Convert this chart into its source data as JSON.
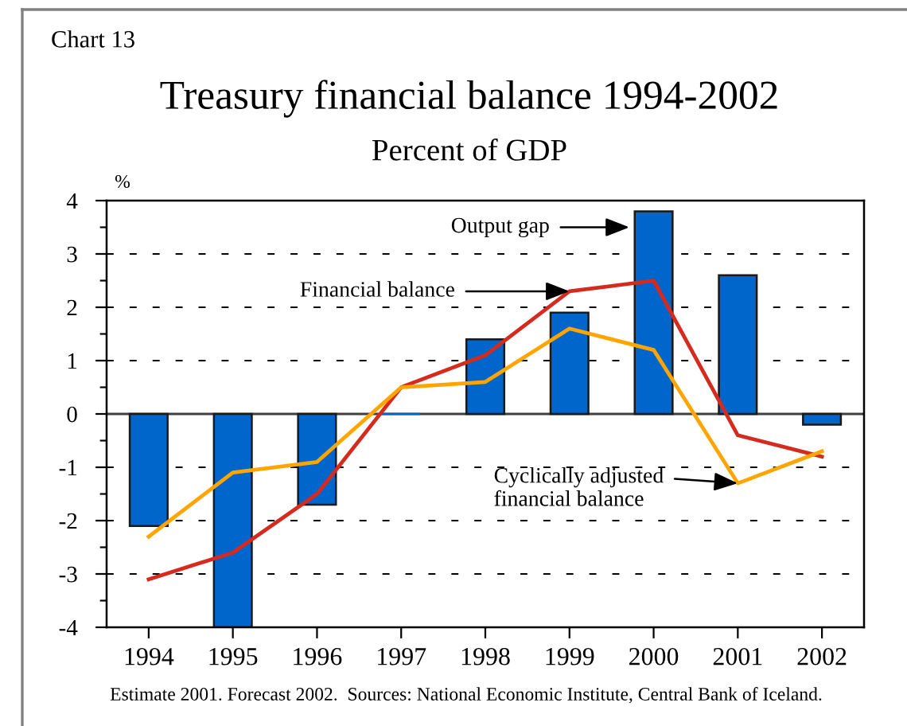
{
  "chart_data": {
    "type": "bar",
    "title": "Treasury financial balance 1994-2002",
    "subtitle": "Percent of GDP",
    "ylabel": "%",
    "categories": [
      "1994",
      "1995",
      "1996",
      "1997",
      "1998",
      "1999",
      "2000",
      "2001",
      "2002"
    ],
    "series": [
      {
        "color": "#0066cc",
        "values": [
          -2.1,
          -4.0,
          -1.7,
          0.0,
          1.4,
          1.9,
          3.8,
          2.6,
          -0.2
        ]
      },
      {
        "type": "line",
        "color": "#d62a1e",
        "values": [
          -3.1,
          -2.6,
          -1.5,
          0.5,
          1.1,
          2.3,
          2.5,
          -0.4,
          -0.8
        ]
      },
      {
        "type": "line",
        "color": "#ffa500",
        "values": [
          -2.3,
          -1.1,
          -0.9,
          0.5,
          0.6,
          1.6,
          1.2,
          -1.3,
          -0.7
        ]
      }
    ],
    "ylim": [
      -4,
      4
    ],
    "yticks": [
      -4,
      -3,
      -2,
      -1,
      0,
      1,
      2,
      3,
      4
    ],
    "grid": "y",
    "legend": false,
    "marker": "none",
    "line_style": "solid",
    "ref_lines": [
      {
        "axis": "y",
        "value": 0,
        "color": "#404040"
      }
    ],
    "annotations": [
      "Chart 13",
      "Output gap",
      {
        "text": "Financial balance",
        "x": "1999",
        "y": 2.3
      },
      {
        "text": "Cyclically adjusted\nfinancial balance",
        "x": "2001",
        "y": -1.3
      },
      "Estimate 2001. Forecast 2002.  Sources: National Economic Institute, Central Bank of Iceland."
    ]
  }
}
